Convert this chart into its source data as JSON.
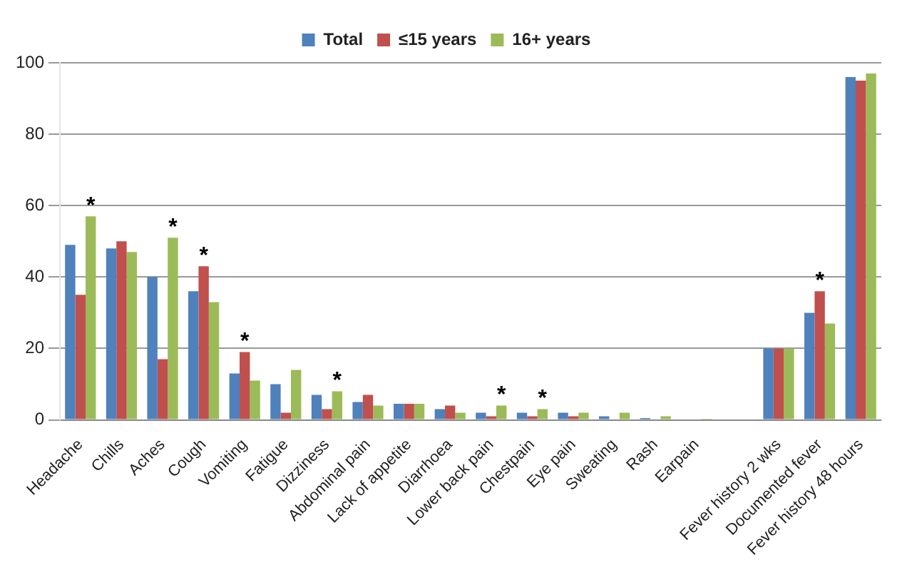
{
  "chart_data": {
    "type": "bar",
    "categories": [
      "Headache",
      "Chills",
      "Aches",
      "Cough",
      "Vomiting",
      "Fatigue",
      "Dizziness",
      "Abdominal pain",
      "Lack of appetite",
      "Diarrhoea",
      "Lower back pain",
      "Chestpain",
      "Eye pain",
      "Sweating",
      "Rash",
      "Earpain",
      null,
      "Fever history 2 wks",
      "Documented fever",
      "Fever history 48 hours"
    ],
    "series": [
      {
        "name": "Total",
        "color": "#4f81bd",
        "values": [
          49,
          48,
          40,
          36,
          13,
          10,
          7,
          5,
          4.5,
          3,
          2,
          2,
          2,
          1,
          0.5,
          0,
          null,
          20,
          30,
          96
        ]
      },
      {
        "name": "≤15 years",
        "color": "#c0504d",
        "values": [
          35,
          50,
          17,
          43,
          19,
          2,
          3,
          7,
          4.5,
          4,
          1,
          1,
          1,
          0,
          0,
          0,
          null,
          20,
          36,
          95
        ]
      },
      {
        "name": "16+ years",
        "color": "#9bbb59",
        "values": [
          57,
          47,
          51,
          33,
          11,
          14,
          8,
          4,
          4.5,
          2,
          4,
          3,
          2,
          2,
          1,
          0.3,
          null,
          20,
          27,
          97
        ]
      }
    ],
    "ylim": [
      0,
      100
    ],
    "yticks": [
      0,
      20,
      40,
      60,
      80,
      100
    ],
    "grid": "y",
    "legend": "top",
    "annotations": [
      {
        "text": "*",
        "x": "Headache",
        "y": 57
      },
      {
        "text": "*",
        "x": "Aches",
        "y": 51
      },
      {
        "text": "*",
        "x": "Cough",
        "y": 43
      },
      {
        "text": "*",
        "x": "Vomiting",
        "y": 19
      },
      {
        "text": "*",
        "x": "Dizziness",
        "y": 8
      },
      {
        "text": "*",
        "x": "Lower back pain",
        "y": 4
      },
      {
        "text": "*",
        "x": "Chestpain",
        "y": 3
      },
      {
        "text": "*",
        "x": "Documented fever",
        "y": 36
      }
    ]
  }
}
